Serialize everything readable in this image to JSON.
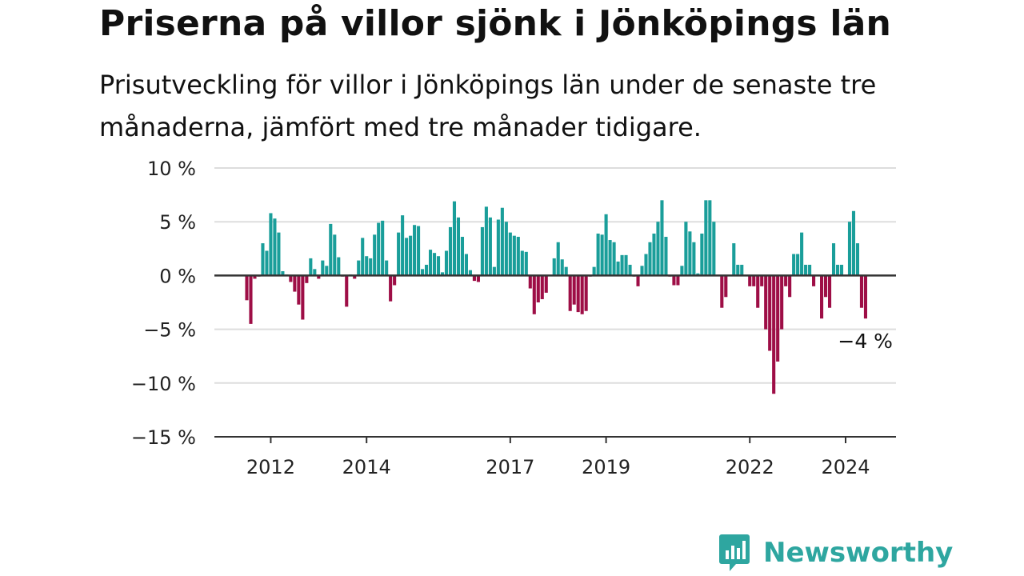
{
  "title": "Priserna på villor sjönk i Jönköpings län",
  "subtitle": "Prisutveckling för villor i Jönköpings län under de senaste tre månaderna, jämfört med tre månader tidigare.",
  "logo_text": "Newsworthy",
  "colors": {
    "positive": "#1a9e9a",
    "negative": "#9e0e46",
    "zero_line": "#333333",
    "grid": "#dddddd",
    "brand": "#2ea6a0"
  },
  "chart_data": {
    "type": "bar",
    "start": "2011-07",
    "frequency": "monthly",
    "ylim": [
      -15,
      10
    ],
    "yticks": [
      10,
      5,
      0,
      -5,
      -10,
      -15
    ],
    "ytick_labels": [
      "10 %",
      "5 %",
      "0 %",
      "−5 %",
      "−10 %",
      "−15 %"
    ],
    "xticks": [
      "2012",
      "2014",
      "2017",
      "2019",
      "2022",
      "2024"
    ],
    "grid": true,
    "last_value_label": "−4 %",
    "values": [
      -2.3,
      -4.5,
      -0.3,
      -0.1,
      3.0,
      2.3,
      5.8,
      5.3,
      4.0,
      0.4,
      0.1,
      -0.6,
      -1.5,
      -2.7,
      -4.1,
      -0.7,
      1.6,
      0.6,
      -0.3,
      1.4,
      0.9,
      4.8,
      3.8,
      1.7,
      -0.1,
      -2.9,
      0.1,
      -0.3,
      1.4,
      3.5,
      1.8,
      1.6,
      3.8,
      4.9,
      5.1,
      1.4,
      -2.4,
      -0.9,
      4.0,
      5.6,
      3.5,
      3.7,
      4.7,
      4.6,
      0.6,
      1.0,
      2.4,
      2.1,
      1.8,
      0.3,
      2.3,
      4.5,
      6.9,
      5.4,
      3.6,
      2.0,
      0.5,
      -0.5,
      -0.6,
      4.5,
      6.4,
      5.4,
      0.8,
      5.2,
      6.3,
      5.0,
      4.0,
      3.7,
      3.6,
      2.3,
      2.2,
      -1.2,
      -3.6,
      -2.5,
      -2.2,
      -1.6,
      0.0,
      1.6,
      3.1,
      1.5,
      0.8,
      -3.3,
      -2.7,
      -3.4,
      -3.6,
      -3.3,
      -0.1,
      0.8,
      3.9,
      3.8,
      5.7,
      3.3,
      3.1,
      1.3,
      1.9,
      1.9,
      1.0,
      -0.1,
      -1.0,
      0.9,
      2.0,
      3.1,
      3.9,
      5.0,
      7.0,
      3.6,
      -0.1,
      -0.9,
      -0.9,
      0.9,
      5.0,
      4.1,
      3.1,
      0.2,
      3.9,
      7.0,
      7.0,
      5.0,
      0.0,
      -3.0,
      -2.0,
      0.0,
      3.0,
      1.0,
      1.0,
      0.0,
      -1.0,
      -1.0,
      -3.0,
      -1.0,
      -5.0,
      -7.0,
      -11.0,
      -8.0,
      -5.0,
      -1.0,
      -2.0,
      2.0,
      2.0,
      4.0,
      1.0,
      1.0,
      -1.0,
      0.0,
      -4.0,
      -2.0,
      -3.0,
      3.0,
      1.0,
      1.0,
      0.0,
      5.0,
      6.0,
      3.0,
      -3.0,
      -4.0
    ]
  }
}
